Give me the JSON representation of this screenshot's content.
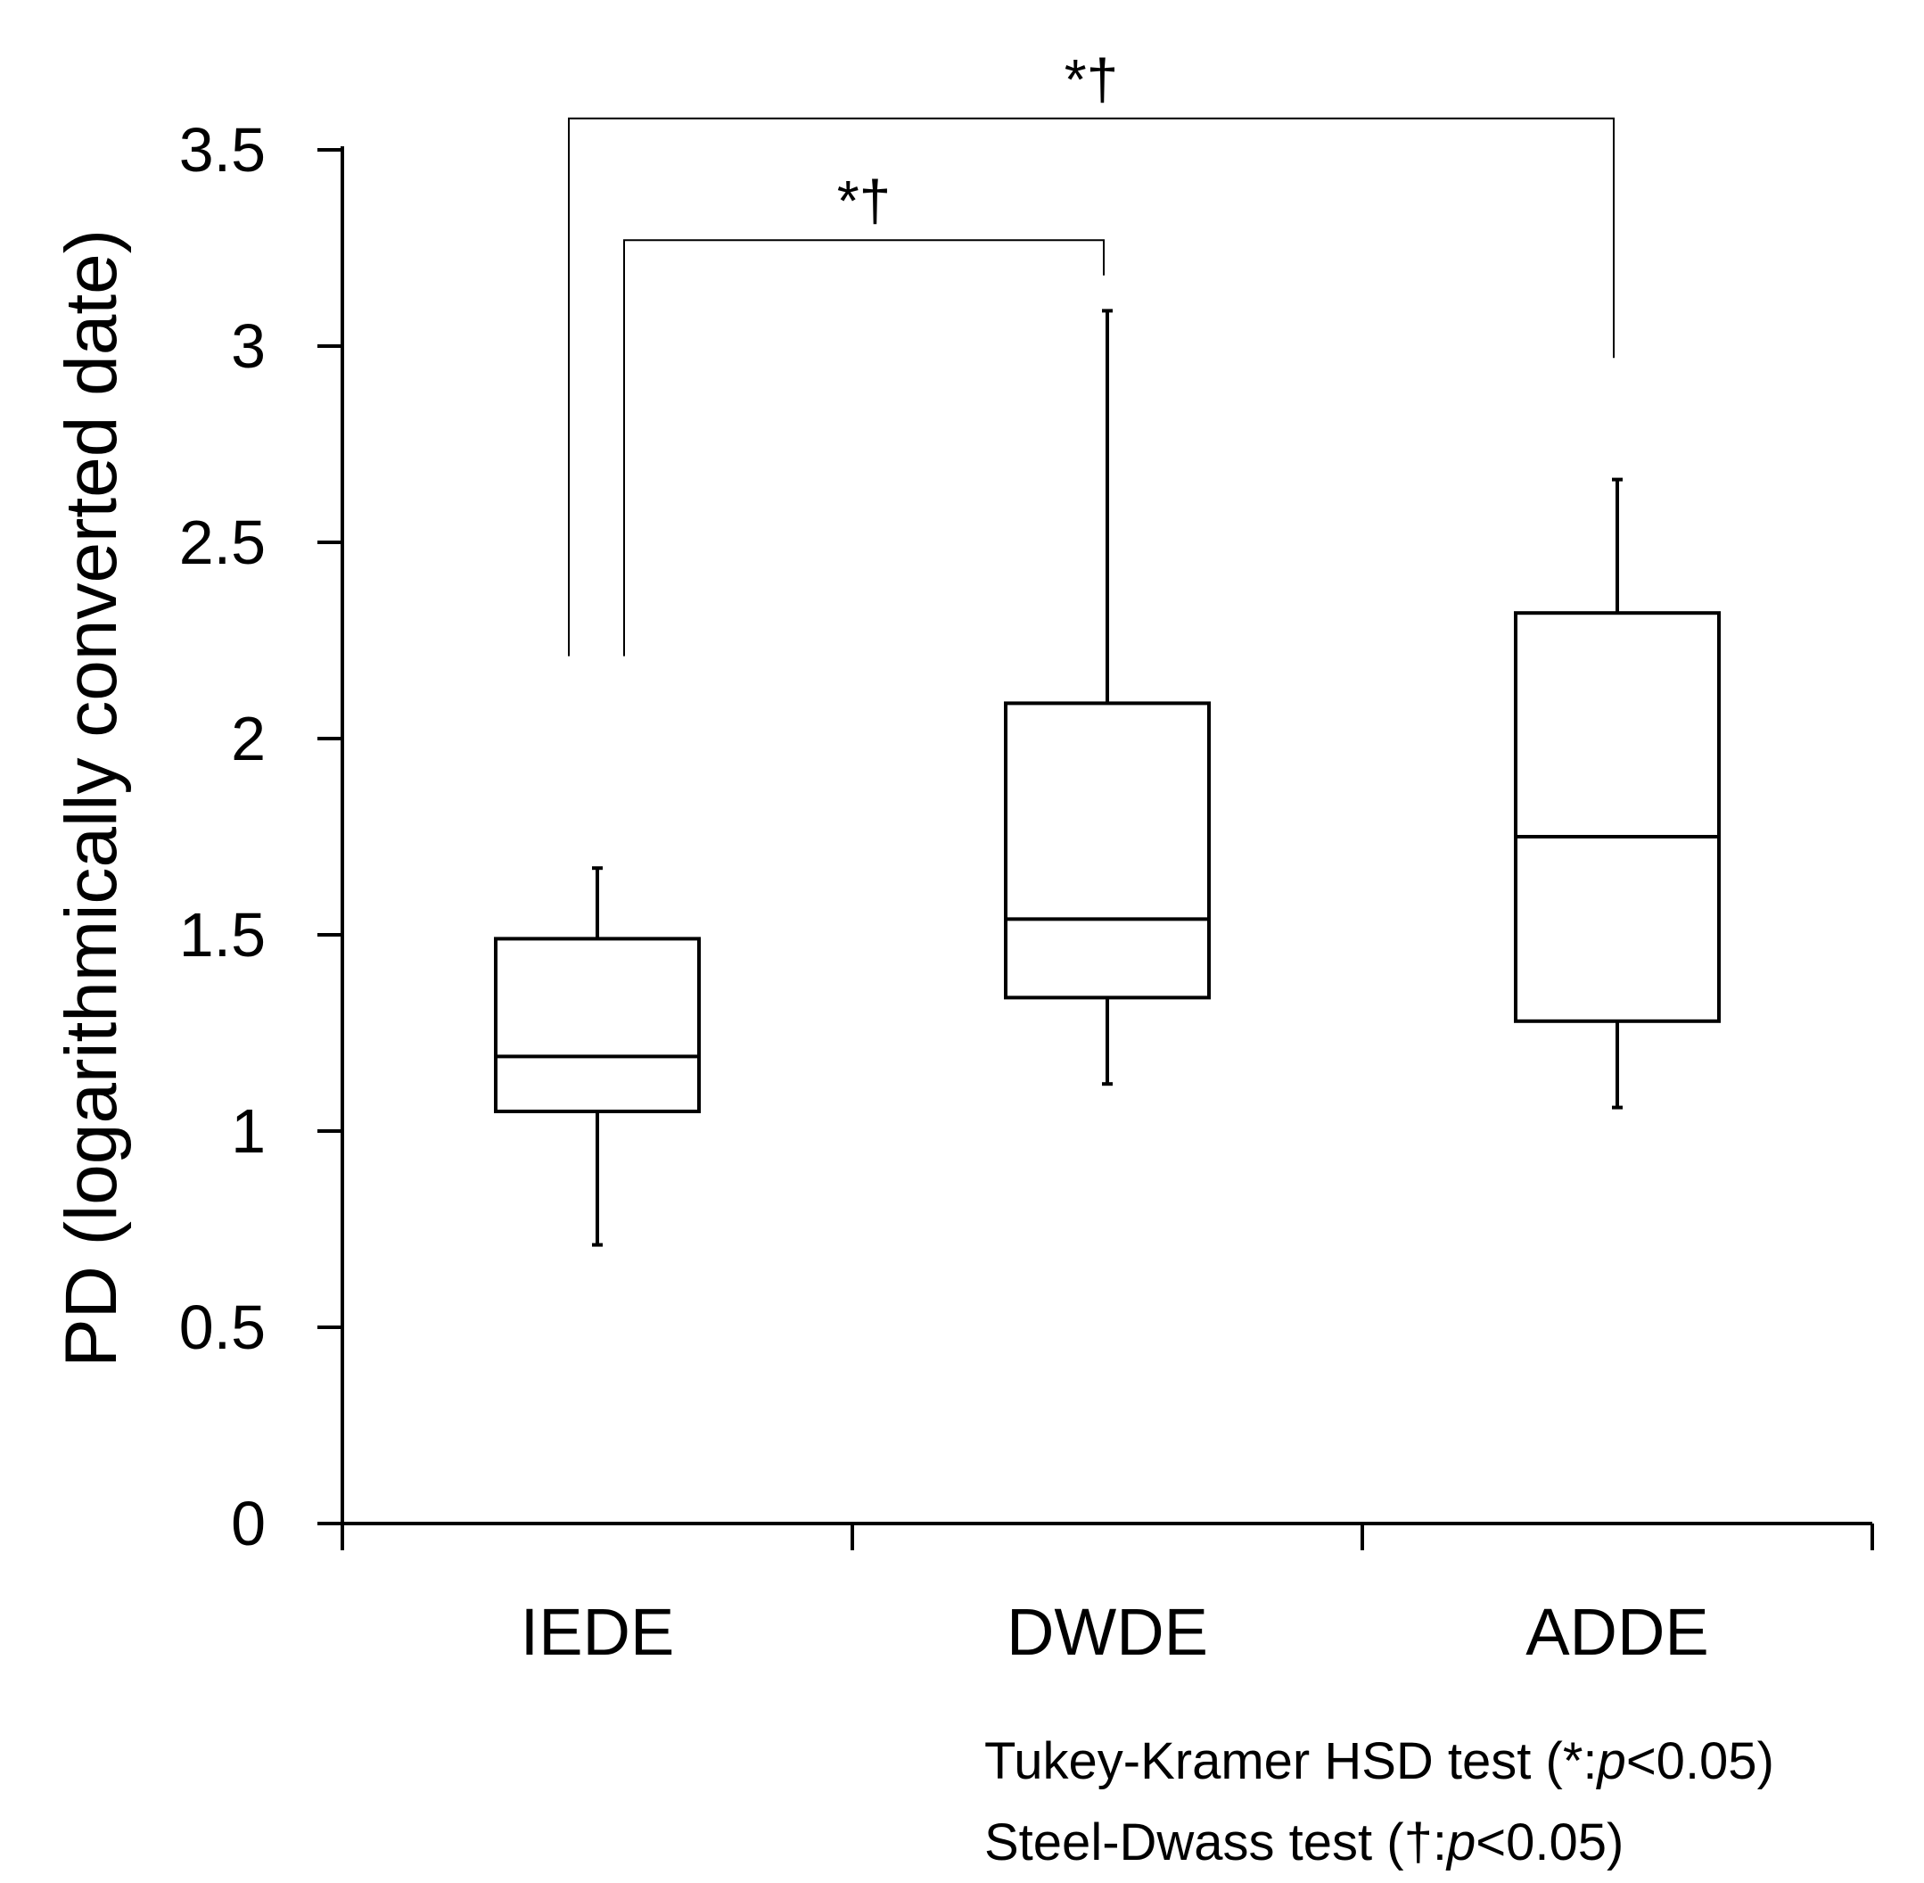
{
  "chart_data": {
    "type": "box",
    "title": "",
    "xlabel": "",
    "ylabel": "PD (logarithmically converted date)",
    "ylim": [
      0,
      3.5
    ],
    "yticks": [
      0,
      0.5,
      1,
      1.5,
      2,
      2.5,
      3,
      3.5
    ],
    "ytick_labels": [
      "0",
      "0.5",
      "1",
      "1.5",
      "2",
      "2.5",
      "3",
      "3.5"
    ],
    "categories": [
      "IEDE",
      "DWDE",
      "ADDE"
    ],
    "boxes": [
      {
        "name": "IEDE",
        "whisker_low": 0.71,
        "q1": 1.05,
        "median": 1.19,
        "q3": 1.49,
        "whisker_high": 1.67
      },
      {
        "name": "DWDE",
        "whisker_low": 1.12,
        "q1": 1.34,
        "median": 1.54,
        "q3": 2.09,
        "whisker_high": 3.09
      },
      {
        "name": "ADDE",
        "whisker_low": 1.06,
        "q1": 1.28,
        "median": 1.75,
        "q3": 2.32,
        "whisker_high": 2.66
      }
    ],
    "significance": [
      {
        "from": "IEDE",
        "to": "DWDE",
        "label": "*†",
        "bar_y": 3.27,
        "left_end_y": 2.21,
        "right_end_y": 3.18
      },
      {
        "from": "IEDE",
        "to": "ADDE",
        "label": "*†",
        "bar_y": 3.58,
        "left_end_y": 2.21,
        "right_end_y": 2.97
      }
    ],
    "annotations": [
      {
        "prefix": "Tukey-Kramer HSD test (*:",
        "p": "p",
        "suffix": "<0.05)"
      },
      {
        "prefix": "Steel-Dwass test (†:",
        "p": "p",
        "suffix": "<0.05)"
      }
    ]
  }
}
